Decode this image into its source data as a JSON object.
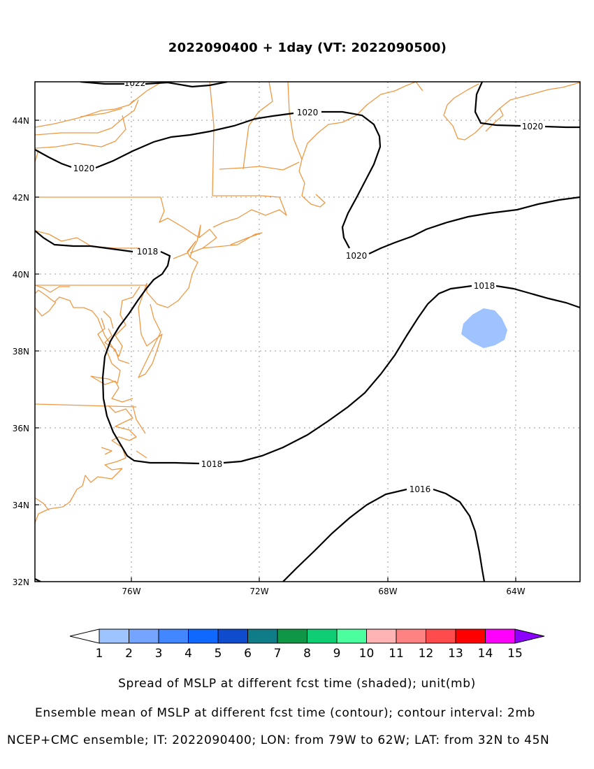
{
  "title": "2022090400 + 1day (VT: 2022090500)",
  "axes": {
    "x_ticks": [
      {
        "lon": -76,
        "label": "76W"
      },
      {
        "lon": -72,
        "label": "72W"
      },
      {
        "lon": -68,
        "label": "68W"
      },
      {
        "lon": -64,
        "label": "64W"
      }
    ],
    "y_ticks": [
      {
        "lat": 32,
        "label": "32N"
      },
      {
        "lat": 34,
        "label": "34N"
      },
      {
        "lat": 36,
        "label": "36N"
      },
      {
        "lat": 38,
        "label": "38N"
      },
      {
        "lat": 40,
        "label": "40N"
      },
      {
        "lat": 42,
        "label": "42N"
      },
      {
        "lat": 44,
        "label": "44N"
      }
    ],
    "lon_range": [
      -79,
      -62
    ],
    "lat_range": [
      32,
      45
    ],
    "grid": true
  },
  "colorbar": {
    "labels": [
      "1",
      "2",
      "3",
      "4",
      "5",
      "6",
      "7",
      "8",
      "9",
      "10",
      "11",
      "12",
      "13",
      "14",
      "15"
    ],
    "colors": [
      "#ffffff",
      "#9ec3ff",
      "#73a5ff",
      "#4287ff",
      "#0f69ff",
      "#0f4bcd",
      "#0f7d87",
      "#0f9646",
      "#0fcd73",
      "#4bff9e",
      "#ffb4b4",
      "#ff8282",
      "#ff4b4b",
      "#ff0000",
      "#ff00ff",
      "#8c00ff"
    ]
  },
  "contours": [
    {
      "label": "1022"
    },
    {
      "label": "1020"
    },
    {
      "label": "1020"
    },
    {
      "label": "1020"
    },
    {
      "label": "1020"
    },
    {
      "label": "1018"
    },
    {
      "label": "1018"
    },
    {
      "label": "1018"
    },
    {
      "label": "1016"
    }
  ],
  "spread_shade": {
    "value": 1,
    "color": "#9ec3ff"
  },
  "captions": {
    "line1": "Spread of MSLP at different fcst time (shaded); unit(mb)",
    "line2": "Ensemble mean of MSLP at different fcst time (contour); contour interval: 2mb",
    "line3": "NCEP+CMC ensemble; IT: 2022090400; LON: from 79W to 62W; LAT: from 32N to 45N"
  },
  "colors": {
    "coast": "#ee9944",
    "contour": "#000000",
    "grid": "#999999"
  }
}
